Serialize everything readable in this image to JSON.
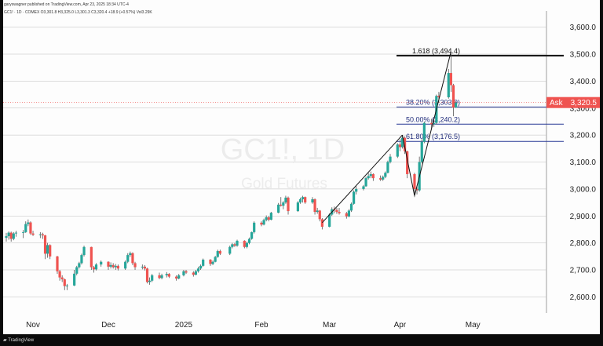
{
  "header": {
    "published": "garyswagner published on TradingView.com, Apr 23, 2025 18:34 UTC-4",
    "symbol_line": "GC1! · 1D · COMEX   O3,301.8  H3,325.0  L3,301.3  C3,320.4  +18.9 (+0.57%)  Vol3.29K"
  },
  "footer": {
    "brand": "TradingView"
  },
  "watermark": {
    "symbol": "GC1!, 1D",
    "name": "Gold Futures"
  },
  "ask": {
    "label": "Ask",
    "value": "3,320.5",
    "price": 3320.5
  },
  "colors": {
    "up": "#26a69a",
    "down": "#ef5350",
    "grid": "#bdbdbd",
    "fib_line": "#2a3b96",
    "fib_text": "#1f2b7a",
    "ask_bg": "#ef5350",
    "wick": "#555555"
  },
  "chart_data": {
    "type": "candlestick",
    "title": "",
    "ylim": [
      2540,
      3660
    ],
    "y_ticks": [
      "2,600.0",
      "2,700.0",
      "2,800.0",
      "2,900.0",
      "3,000.0",
      "3,100.0",
      "3,200.0",
      "3,300.0",
      "3,400.0",
      "3,500.0",
      "3,600.0"
    ],
    "y_tick_values": [
      2600,
      2700,
      2800,
      2900,
      3000,
      3100,
      3200,
      3300,
      3400,
      3500,
      3600
    ],
    "x_ticks": [
      {
        "label": "Nov",
        "date": "2024-11-01"
      },
      {
        "label": "Dec",
        "date": "2024-12-02"
      },
      {
        "label": "2025",
        "date": "2025-01-02"
      },
      {
        "label": "Feb",
        "date": "2025-02-03"
      },
      {
        "label": "Mar",
        "date": "2025-03-03"
      },
      {
        "label": "Apr",
        "date": "2025-04-01"
      },
      {
        "label": "May",
        "date": "2025-05-01"
      }
    ],
    "x_range": [
      "2024-10-21",
      "2025-05-30"
    ],
    "candles": [
      {
        "d": "2024-10-21",
        "o": 2819,
        "h": 2837,
        "l": 2805,
        "c": 2825
      },
      {
        "d": "2024-10-22",
        "o": 2825,
        "h": 2843,
        "l": 2812,
        "c": 2838
      },
      {
        "d": "2024-10-23",
        "o": 2838,
        "h": 2842,
        "l": 2805,
        "c": 2815
      },
      {
        "d": "2024-10-24",
        "o": 2815,
        "h": 2840,
        "l": 2810,
        "c": 2835
      },
      {
        "d": "2024-10-25",
        "o": 2835,
        "h": 2845,
        "l": 2823,
        "c": 2838
      },
      {
        "d": "2024-10-28",
        "o": 2838,
        "h": 2848,
        "l": 2818,
        "c": 2840
      },
      {
        "d": "2024-10-29",
        "o": 2840,
        "h": 2880,
        "l": 2837,
        "c": 2870
      },
      {
        "d": "2024-10-30",
        "o": 2870,
        "h": 2887,
        "l": 2862,
        "c": 2876
      },
      {
        "d": "2024-10-31",
        "o": 2876,
        "h": 2880,
        "l": 2830,
        "c": 2835
      },
      {
        "d": "2024-11-01",
        "o": 2835,
        "h": 2845,
        "l": 2826,
        "c": 2830
      },
      {
        "d": "2024-11-04",
        "o": 2830,
        "h": 2840,
        "l": 2818,
        "c": 2832
      },
      {
        "d": "2024-11-05",
        "o": 2832,
        "h": 2838,
        "l": 2815,
        "c": 2828
      },
      {
        "d": "2024-11-06",
        "o": 2828,
        "h": 2830,
        "l": 2740,
        "c": 2760
      },
      {
        "d": "2024-11-07",
        "o": 2760,
        "h": 2800,
        "l": 2745,
        "c": 2792
      },
      {
        "d": "2024-11-08",
        "o": 2792,
        "h": 2795,
        "l": 2740,
        "c": 2750
      },
      {
        "d": "2024-11-11",
        "o": 2750,
        "h": 2752,
        "l": 2685,
        "c": 2695
      },
      {
        "d": "2024-11-12",
        "o": 2695,
        "h": 2700,
        "l": 2660,
        "c": 2672
      },
      {
        "d": "2024-11-13",
        "o": 2672,
        "h": 2680,
        "l": 2655,
        "c": 2665
      },
      {
        "d": "2024-11-14",
        "o": 2665,
        "h": 2668,
        "l": 2625,
        "c": 2640
      },
      {
        "d": "2024-11-15",
        "o": 2640,
        "h": 2648,
        "l": 2625,
        "c": 2642
      },
      {
        "d": "2024-11-18",
        "o": 2642,
        "h": 2700,
        "l": 2640,
        "c": 2686
      },
      {
        "d": "2024-11-19",
        "o": 2686,
        "h": 2715,
        "l": 2680,
        "c": 2710
      },
      {
        "d": "2024-11-20",
        "o": 2710,
        "h": 2730,
        "l": 2705,
        "c": 2725
      },
      {
        "d": "2024-11-21",
        "o": 2725,
        "h": 2760,
        "l": 2720,
        "c": 2755
      },
      {
        "d": "2024-11-22",
        "o": 2755,
        "h": 2790,
        "l": 2750,
        "c": 2785
      },
      {
        "d": "2024-11-25",
        "o": 2785,
        "h": 2786,
        "l": 2700,
        "c": 2710
      },
      {
        "d": "2024-11-26",
        "o": 2710,
        "h": 2715,
        "l": 2690,
        "c": 2702
      },
      {
        "d": "2024-11-27",
        "o": 2702,
        "h": 2725,
        "l": 2698,
        "c": 2720
      },
      {
        "d": "2024-11-29",
        "o": 2720,
        "h": 2735,
        "l": 2712,
        "c": 2730
      },
      {
        "d": "2024-12-02",
        "o": 2730,
        "h": 2732,
        "l": 2700,
        "c": 2712
      },
      {
        "d": "2024-12-03",
        "o": 2712,
        "h": 2728,
        "l": 2705,
        "c": 2718
      },
      {
        "d": "2024-12-04",
        "o": 2718,
        "h": 2725,
        "l": 2705,
        "c": 2710
      },
      {
        "d": "2024-12-05",
        "o": 2710,
        "h": 2722,
        "l": 2700,
        "c": 2715
      },
      {
        "d": "2024-12-06",
        "o": 2715,
        "h": 2720,
        "l": 2698,
        "c": 2705
      },
      {
        "d": "2024-12-09",
        "o": 2705,
        "h": 2735,
        "l": 2700,
        "c": 2730
      },
      {
        "d": "2024-12-10",
        "o": 2730,
        "h": 2762,
        "l": 2725,
        "c": 2755
      },
      {
        "d": "2024-12-11",
        "o": 2755,
        "h": 2768,
        "l": 2748,
        "c": 2762
      },
      {
        "d": "2024-12-12",
        "o": 2762,
        "h": 2765,
        "l": 2718,
        "c": 2725
      },
      {
        "d": "2024-12-13",
        "o": 2725,
        "h": 2730,
        "l": 2700,
        "c": 2710
      },
      {
        "d": "2024-12-16",
        "o": 2710,
        "h": 2720,
        "l": 2702,
        "c": 2712
      },
      {
        "d": "2024-12-17",
        "o": 2712,
        "h": 2718,
        "l": 2698,
        "c": 2705
      },
      {
        "d": "2024-12-18",
        "o": 2705,
        "h": 2708,
        "l": 2650,
        "c": 2655
      },
      {
        "d": "2024-12-19",
        "o": 2655,
        "h": 2672,
        "l": 2645,
        "c": 2660
      },
      {
        "d": "2024-12-20",
        "o": 2660,
        "h": 2685,
        "l": 2655,
        "c": 2680
      },
      {
        "d": "2024-12-23",
        "o": 2680,
        "h": 2690,
        "l": 2665,
        "c": 2670
      },
      {
        "d": "2024-12-24",
        "o": 2670,
        "h": 2686,
        "l": 2665,
        "c": 2680
      },
      {
        "d": "2024-12-26",
        "o": 2680,
        "h": 2692,
        "l": 2672,
        "c": 2685
      },
      {
        "d": "2024-12-27",
        "o": 2685,
        "h": 2688,
        "l": 2670,
        "c": 2675
      },
      {
        "d": "2024-12-30",
        "o": 2675,
        "h": 2680,
        "l": 2660,
        "c": 2668
      },
      {
        "d": "2024-12-31",
        "o": 2668,
        "h": 2685,
        "l": 2665,
        "c": 2680
      },
      {
        "d": "2025-01-02",
        "o": 2680,
        "h": 2700,
        "l": 2676,
        "c": 2695
      },
      {
        "d": "2025-01-03",
        "o": 2695,
        "h": 2700,
        "l": 2685,
        "c": 2690
      },
      {
        "d": "2025-01-06",
        "o": 2690,
        "h": 2695,
        "l": 2675,
        "c": 2682
      },
      {
        "d": "2025-01-07",
        "o": 2682,
        "h": 2700,
        "l": 2680,
        "c": 2695
      },
      {
        "d": "2025-01-08",
        "o": 2695,
        "h": 2712,
        "l": 2690,
        "c": 2705
      },
      {
        "d": "2025-01-09",
        "o": 2705,
        "h": 2720,
        "l": 2700,
        "c": 2715
      },
      {
        "d": "2025-01-10",
        "o": 2715,
        "h": 2742,
        "l": 2712,
        "c": 2738
      },
      {
        "d": "2025-01-13",
        "o": 2738,
        "h": 2740,
        "l": 2715,
        "c": 2722
      },
      {
        "d": "2025-01-14",
        "o": 2722,
        "h": 2735,
        "l": 2718,
        "c": 2730
      },
      {
        "d": "2025-01-15",
        "o": 2730,
        "h": 2752,
        "l": 2728,
        "c": 2748
      },
      {
        "d": "2025-01-16",
        "o": 2748,
        "h": 2775,
        "l": 2745,
        "c": 2770
      },
      {
        "d": "2025-01-17",
        "o": 2770,
        "h": 2775,
        "l": 2755,
        "c": 2760
      },
      {
        "d": "2025-01-21",
        "o": 2760,
        "h": 2790,
        "l": 2755,
        "c": 2785
      },
      {
        "d": "2025-01-22",
        "o": 2785,
        "h": 2800,
        "l": 2780,
        "c": 2795
      },
      {
        "d": "2025-01-23",
        "o": 2795,
        "h": 2800,
        "l": 2785,
        "c": 2790
      },
      {
        "d": "2025-01-24",
        "o": 2790,
        "h": 2812,
        "l": 2786,
        "c": 2808
      },
      {
        "d": "2025-01-27",
        "o": 2808,
        "h": 2810,
        "l": 2780,
        "c": 2785
      },
      {
        "d": "2025-01-28",
        "o": 2785,
        "h": 2805,
        "l": 2780,
        "c": 2800
      },
      {
        "d": "2025-01-29",
        "o": 2800,
        "h": 2820,
        "l": 2795,
        "c": 2815
      },
      {
        "d": "2025-01-30",
        "o": 2815,
        "h": 2842,
        "l": 2812,
        "c": 2840
      },
      {
        "d": "2025-01-31",
        "o": 2840,
        "h": 2880,
        "l": 2835,
        "c": 2875
      },
      {
        "d": "2025-02-03",
        "o": 2875,
        "h": 2880,
        "l": 2862,
        "c": 2868
      },
      {
        "d": "2025-02-04",
        "o": 2868,
        "h": 2890,
        "l": 2865,
        "c": 2885
      },
      {
        "d": "2025-02-05",
        "o": 2885,
        "h": 2902,
        "l": 2880,
        "c": 2895
      },
      {
        "d": "2025-02-06",
        "o": 2895,
        "h": 2900,
        "l": 2880,
        "c": 2886
      },
      {
        "d": "2025-02-07",
        "o": 2886,
        "h": 2915,
        "l": 2884,
        "c": 2912
      },
      {
        "d": "2025-02-10",
        "o": 2912,
        "h": 2948,
        "l": 2910,
        "c": 2942
      },
      {
        "d": "2025-02-11",
        "o": 2942,
        "h": 2970,
        "l": 2935,
        "c": 2938
      },
      {
        "d": "2025-02-12",
        "o": 2938,
        "h": 2955,
        "l": 2925,
        "c": 2950
      },
      {
        "d": "2025-02-13",
        "o": 2950,
        "h": 2975,
        "l": 2945,
        "c": 2968
      },
      {
        "d": "2025-02-14",
        "o": 2968,
        "h": 2972,
        "l": 2905,
        "c": 2918
      },
      {
        "d": "2025-02-18",
        "o": 2918,
        "h": 2955,
        "l": 2915,
        "c": 2950
      },
      {
        "d": "2025-02-19",
        "o": 2950,
        "h": 2968,
        "l": 2945,
        "c": 2962
      },
      {
        "d": "2025-02-20",
        "o": 2962,
        "h": 2975,
        "l": 2950,
        "c": 2970
      },
      {
        "d": "2025-02-21",
        "o": 2970,
        "h": 2972,
        "l": 2945,
        "c": 2950
      },
      {
        "d": "2025-02-24",
        "o": 2950,
        "h": 2970,
        "l": 2945,
        "c": 2962
      },
      {
        "d": "2025-02-25",
        "o": 2962,
        "h": 2965,
        "l": 2905,
        "c": 2915
      },
      {
        "d": "2025-02-26",
        "o": 2915,
        "h": 2930,
        "l": 2908,
        "c": 2920
      },
      {
        "d": "2025-02-27",
        "o": 2920,
        "h": 2922,
        "l": 2880,
        "c": 2888
      },
      {
        "d": "2025-02-28",
        "o": 2888,
        "h": 2892,
        "l": 2850,
        "c": 2860
      },
      {
        "d": "2025-03-03",
        "o": 2860,
        "h": 2910,
        "l": 2858,
        "c": 2905
      },
      {
        "d": "2025-03-04",
        "o": 2905,
        "h": 2932,
        "l": 2900,
        "c": 2925
      },
      {
        "d": "2025-03-05",
        "o": 2925,
        "h": 2935,
        "l": 2910,
        "c": 2922
      },
      {
        "d": "2025-03-06",
        "o": 2922,
        "h": 2930,
        "l": 2908,
        "c": 2915
      },
      {
        "d": "2025-03-07",
        "o": 2915,
        "h": 2930,
        "l": 2905,
        "c": 2910
      },
      {
        "d": "2025-03-10",
        "o": 2910,
        "h": 2915,
        "l": 2890,
        "c": 2898
      },
      {
        "d": "2025-03-11",
        "o": 2898,
        "h": 2925,
        "l": 2895,
        "c": 2920
      },
      {
        "d": "2025-03-12",
        "o": 2920,
        "h": 2950,
        "l": 2915,
        "c": 2945
      },
      {
        "d": "2025-03-13",
        "o": 2945,
        "h": 2995,
        "l": 2942,
        "c": 2990
      },
      {
        "d": "2025-03-14",
        "o": 2990,
        "h": 3010,
        "l": 2980,
        "c": 3000
      },
      {
        "d": "2025-03-17",
        "o": 3000,
        "h": 3015,
        "l": 2995,
        "c": 3010
      },
      {
        "d": "2025-03-18",
        "o": 3010,
        "h": 3045,
        "l": 3008,
        "c": 3040
      },
      {
        "d": "2025-03-19",
        "o": 3040,
        "h": 3060,
        "l": 3035,
        "c": 3048
      },
      {
        "d": "2025-03-20",
        "o": 3048,
        "h": 3065,
        "l": 3040,
        "c": 3055
      },
      {
        "d": "2025-03-21",
        "o": 3055,
        "h": 3058,
        "l": 3030,
        "c": 3040
      },
      {
        "d": "2025-03-24",
        "o": 3040,
        "h": 3050,
        "l": 3030,
        "c": 3035
      },
      {
        "d": "2025-03-25",
        "o": 3035,
        "h": 3050,
        "l": 3030,
        "c": 3045
      },
      {
        "d": "2025-03-26",
        "o": 3045,
        "h": 3065,
        "l": 3040,
        "c": 3060
      },
      {
        "d": "2025-03-27",
        "o": 3060,
        "h": 3105,
        "l": 3058,
        "c": 3100
      },
      {
        "d": "2025-03-28",
        "o": 3100,
        "h": 3130,
        "l": 3095,
        "c": 3120
      },
      {
        "d": "2025-03-31",
        "o": 3120,
        "h": 3170,
        "l": 3115,
        "c": 3165
      },
      {
        "d": "2025-04-01",
        "o": 3165,
        "h": 3185,
        "l": 3140,
        "c": 3155
      },
      {
        "d": "2025-04-02",
        "o": 3155,
        "h": 3200,
        "l": 3150,
        "c": 3190
      },
      {
        "d": "2025-04-03",
        "o": 3190,
        "h": 3195,
        "l": 3130,
        "c": 3140
      },
      {
        "d": "2025-04-04",
        "o": 3140,
        "h": 3142,
        "l": 3040,
        "c": 3055
      },
      {
        "d": "2025-04-07",
        "o": 3055,
        "h": 3060,
        "l": 2970,
        "c": 3000
      },
      {
        "d": "2025-04-08",
        "o": 3000,
        "h": 3010,
        "l": 2980,
        "c": 2995
      },
      {
        "d": "2025-04-09",
        "o": 2995,
        "h": 3120,
        "l": 2990,
        "c": 3100
      },
      {
        "d": "2025-04-10",
        "o": 3100,
        "h": 3185,
        "l": 3095,
        "c": 3175
      },
      {
        "d": "2025-04-11",
        "o": 3175,
        "h": 3250,
        "l": 3170,
        "c": 3245
      },
      {
        "d": "2025-04-14",
        "o": 3245,
        "h": 3260,
        "l": 3225,
        "c": 3240
      },
      {
        "d": "2025-04-15",
        "o": 3240,
        "h": 3255,
        "l": 3230,
        "c": 3245
      },
      {
        "d": "2025-04-16",
        "o": 3245,
        "h": 3350,
        "l": 3240,
        "c": 3345
      },
      {
        "d": "2025-04-17",
        "o": 3345,
        "h": 3360,
        "l": 3320,
        "c": 3340
      },
      {
        "d": "2025-04-21",
        "o": 3340,
        "h": 3445,
        "l": 3335,
        "c": 3430
      },
      {
        "d": "2025-04-22",
        "o": 3430,
        "h": 3509,
        "l": 3360,
        "c": 3385
      },
      {
        "d": "2025-04-23",
        "o": 3385,
        "h": 3390,
        "l": 3270,
        "c": 3302
      },
      {
        "d": "2025-04-24",
        "o": 3301.8,
        "h": 3325,
        "l": 3301.3,
        "c": 3320.4
      }
    ],
    "fib_levels": [
      {
        "label": "1.618 (3,494.4)",
        "price": 3494.4,
        "bold": true
      },
      {
        "label": "38.20% (3,303.9)",
        "price": 3303.9,
        "bold": false
      },
      {
        "label": "50.00% (3,240.2)",
        "price": 3240.2,
        "bold": false
      },
      {
        "label": "61.80% (3,176.5)",
        "price": 3176.5,
        "bold": false
      }
    ],
    "trendlines": [
      {
        "from": {
          "d": "2025-02-28",
          "p": 2875
        },
        "to": {
          "d": "2025-04-02",
          "p": 3200
        }
      },
      {
        "from": {
          "d": "2025-04-02",
          "p": 3200
        },
        "to": {
          "d": "2025-04-07",
          "p": 2975
        }
      },
      {
        "from": {
          "d": "2025-04-07",
          "p": 2975
        },
        "to": {
          "d": "2025-04-22",
          "p": 3509
        }
      }
    ]
  }
}
